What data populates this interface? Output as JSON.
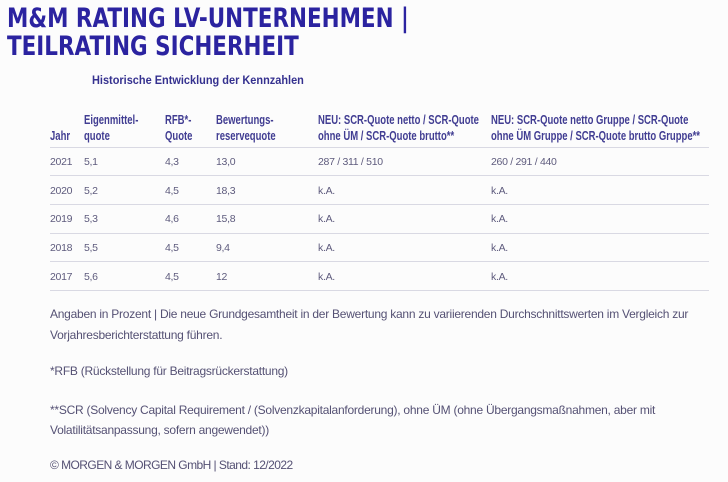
{
  "title": {
    "line1": "M&M RATING LV-UNTERNEHMEN |",
    "line2": "TEILRATING SICHERHEIT"
  },
  "subtitle": "Historische Entwicklung der Kennzahlen",
  "colors": {
    "title": "#2b23a0",
    "table_header_text": "#413d92",
    "table_body_text": "#5e5b7d",
    "separator": "#d9d9e3",
    "background": "#fcfcfc"
  },
  "table": {
    "columns": [
      {
        "lines": [
          "Jahr"
        ]
      },
      {
        "lines": [
          "Eigenmittel-",
          "quote"
        ]
      },
      {
        "lines": [
          "RFB*-",
          "Quote"
        ]
      },
      {
        "lines": [
          "Bewertungs-",
          "reservequote"
        ]
      },
      {
        "lines": [
          "NEU: SCR-Quote netto / SCR-Quote",
          "ohne ÜM / SCR-Quote brutto**"
        ]
      },
      {
        "lines": [
          "NEU: SCR-Quote netto Gruppe / SCR-Quote",
          "ohne ÜM Gruppe / SCR-Quote brutto Gruppe**"
        ]
      }
    ],
    "rows": [
      {
        "cells": [
          "2021",
          "5,1",
          "4,3",
          "13,0",
          "287 / 311 / 510",
          "260 / 291 / 440"
        ]
      },
      {
        "cells": [
          "2020",
          "5,2",
          "4,5",
          "18,3",
          "k.A.",
          "k.A."
        ]
      },
      {
        "cells": [
          "2019",
          "5,3",
          "4,6",
          "15,8",
          "k.A.",
          "k.A."
        ]
      },
      {
        "cells": [
          "2018",
          "5,5",
          "4,5",
          "9,4",
          "k.A.",
          "k.A."
        ]
      },
      {
        "cells": [
          "2017",
          "5,6",
          "4,5",
          "12",
          "k.A.",
          "k.A."
        ]
      }
    ]
  },
  "notes": {
    "note1": {
      "lines": [
        "Angaben in Prozent | Die neue Grundgesamtheit in der Bewertung kann zu variierenden Durchschnittswerten im Vergleich zur",
        "Vorjahresberichterstattung führen."
      ]
    },
    "note2": {
      "lines": [
        "*RFB (Rückstellung für Beitragsrückerstattung)"
      ]
    },
    "note3": {
      "lines": [
        "**SCR (Solvency Capital Requirement / (Solvenzkapitalanforderung), ohne ÜM (ohne Übergangsmaßnahmen, aber mit",
        "Volatilitätsanpassung, sofern angewendet))"
      ]
    },
    "copyright": "© MORGEN & MORGEN GmbH | Stand: 12/2022"
  }
}
